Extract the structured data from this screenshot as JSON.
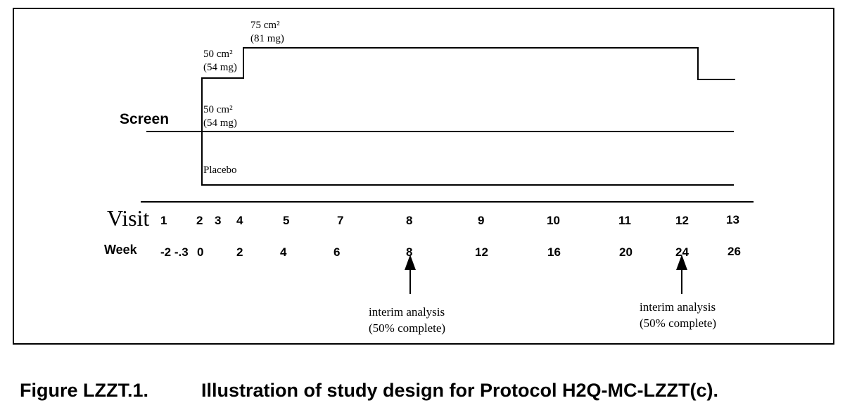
{
  "figure": {
    "caption_label": "Figure LZZT.1.",
    "caption_title": "Illustration of study design for Protocol H2Q-MC-LZZT(c)."
  },
  "diagram": {
    "screen_label": "Screen",
    "arms": {
      "high_dose_stage1": {
        "line1": "50 cm²",
        "line2": "(54 mg)"
      },
      "high_dose_stage2": {
        "line1": "75 cm²",
        "line2": "(81 mg)"
      },
      "low_dose": {
        "line1": "50 cm²",
        "line2": "(54 mg)"
      },
      "placebo": {
        "line1": "Placebo"
      }
    },
    "visit_label": "Visit",
    "week_label": "Week",
    "visits": [
      "1",
      "2",
      "3",
      "4",
      "5",
      "7",
      "8",
      "9",
      "10",
      "11",
      "12",
      "13"
    ],
    "weeks": [
      "-2 -.3",
      "0",
      "2",
      "4",
      "6",
      "8",
      "12",
      "16",
      "20",
      "24",
      "26"
    ],
    "interim_analyses": [
      {
        "at_week": "8",
        "line1": "interim analysis",
        "line2": "(50% complete)"
      },
      {
        "at_week": "24",
        "line1": "interim analysis",
        "line2": "(50% complete)"
      }
    ]
  }
}
